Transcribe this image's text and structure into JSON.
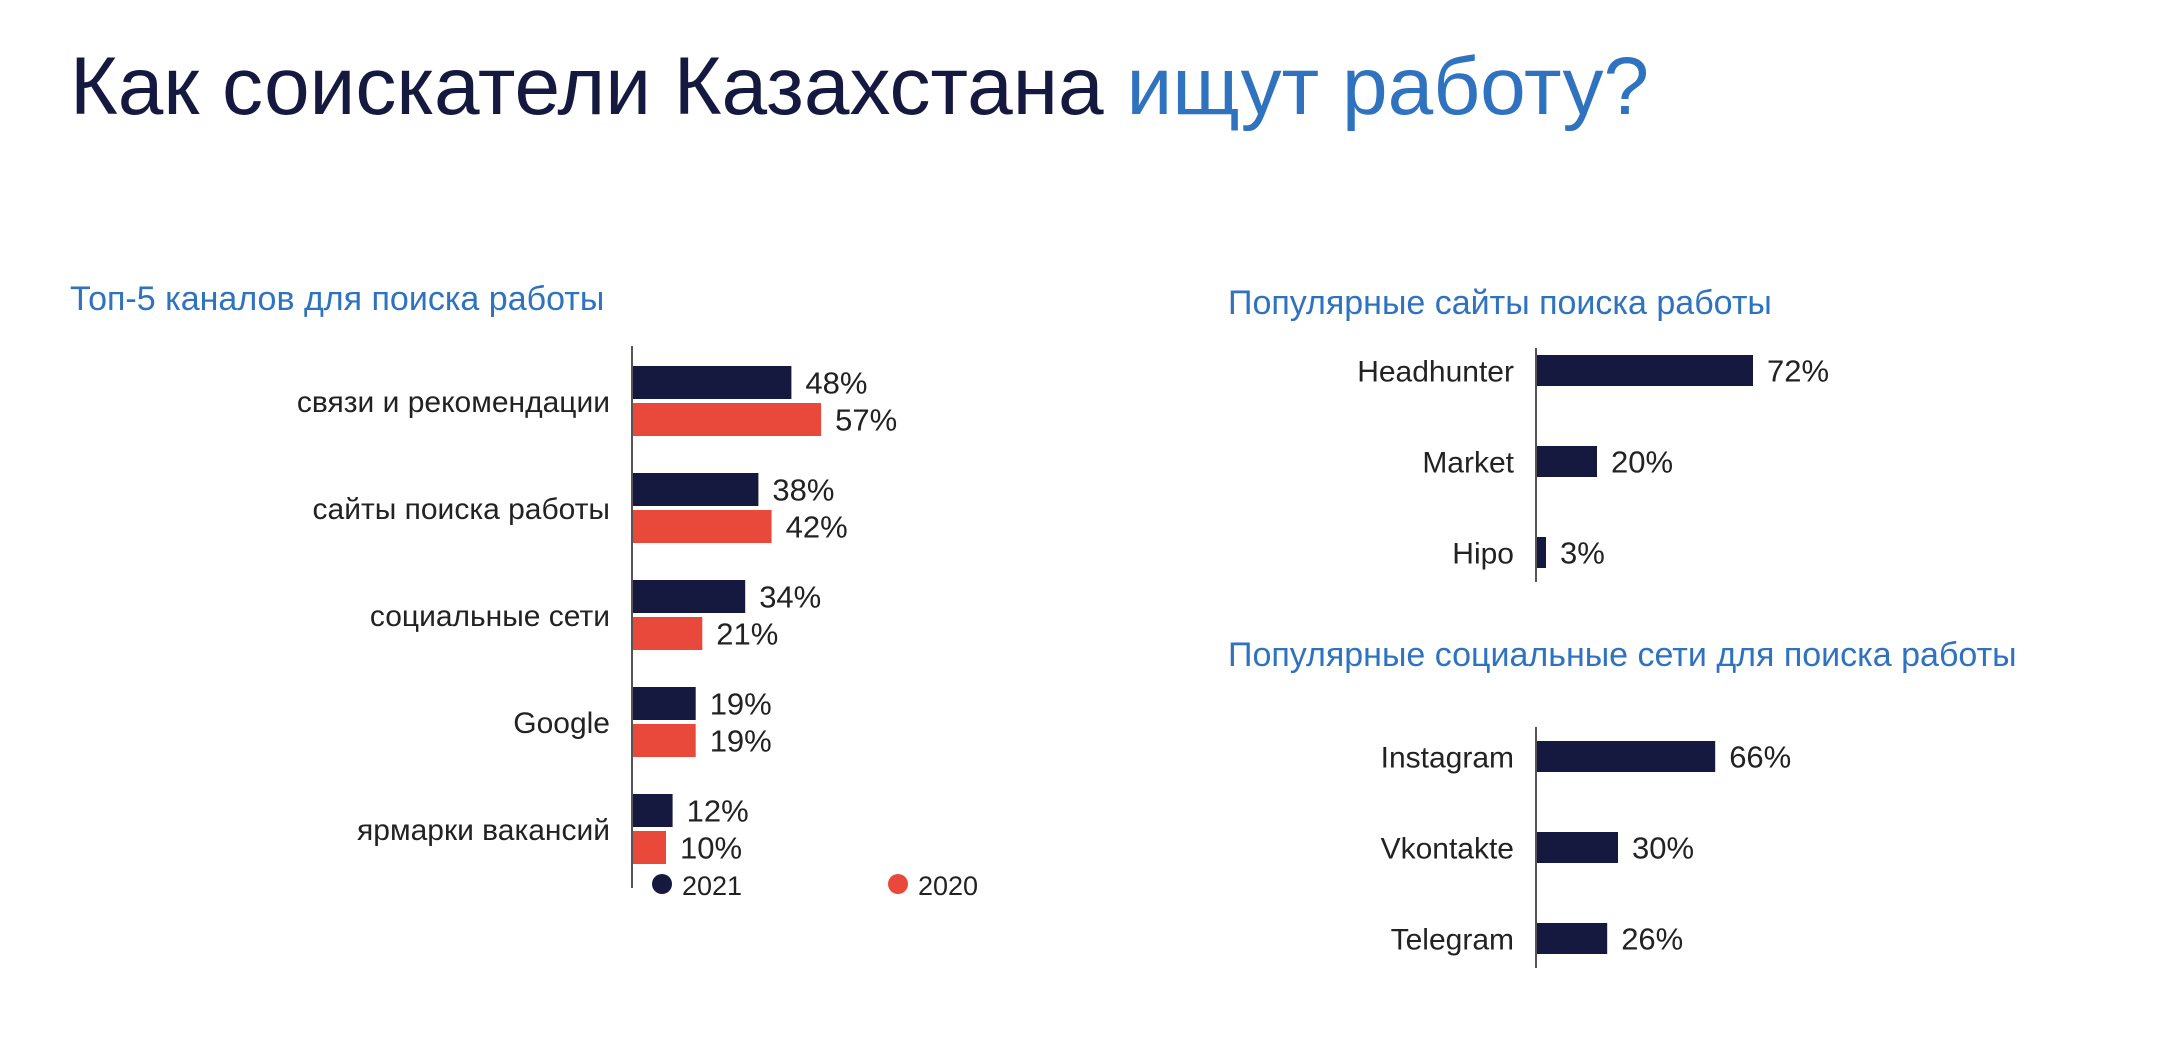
{
  "title": {
    "part1": "Как соискатели Казахстана",
    "part2": "ищут работу?"
  },
  "colors": {
    "dark": "#15193f",
    "red": "#e8493a",
    "accent": "#2f72bf"
  },
  "chart_data": [
    {
      "type": "bar",
      "orientation": "horizontal",
      "title": "Топ-5 каналов для поиска работы",
      "categories": [
        "связи и рекомендации",
        "сайты поиска работы",
        "социальные сети",
        "Google",
        "ярмарки вакансий"
      ],
      "series": [
        {
          "name": "2021",
          "values": [
            48,
            38,
            34,
            19,
            12
          ],
          "labels": [
            "48%",
            "38%",
            "34%",
            "19%",
            "12%"
          ],
          "color": "#15193f"
        },
        {
          "name": "2020",
          "values": [
            57,
            42,
            21,
            19,
            10
          ],
          "labels": [
            "57%",
            "42%",
            "21%",
            "19%",
            "10%"
          ],
          "color": "#e8493a"
        }
      ],
      "xlim": [
        0,
        100
      ],
      "legend": "bottom",
      "grid": false
    },
    {
      "type": "bar",
      "orientation": "horizontal",
      "title": "Популярные сайты поиска работы",
      "categories": [
        "Headhunter",
        "Market",
        "Hipo"
      ],
      "series": [
        {
          "values": [
            72,
            20,
            3
          ],
          "labels": [
            "72%",
            "20%",
            "3%"
          ],
          "color": "#15193f"
        }
      ],
      "xlim": [
        0,
        100
      ],
      "grid": false
    },
    {
      "type": "bar",
      "orientation": "horizontal",
      "title": "Популярные социальные сети для поиска работы",
      "categories": [
        "Instagram",
        "Vkontakte",
        "Telegram"
      ],
      "series": [
        {
          "values": [
            66,
            30,
            26
          ],
          "labels": [
            "66%",
            "30%",
            "26%"
          ],
          "color": "#15193f"
        }
      ],
      "xlim": [
        0,
        100
      ],
      "grid": false
    }
  ]
}
